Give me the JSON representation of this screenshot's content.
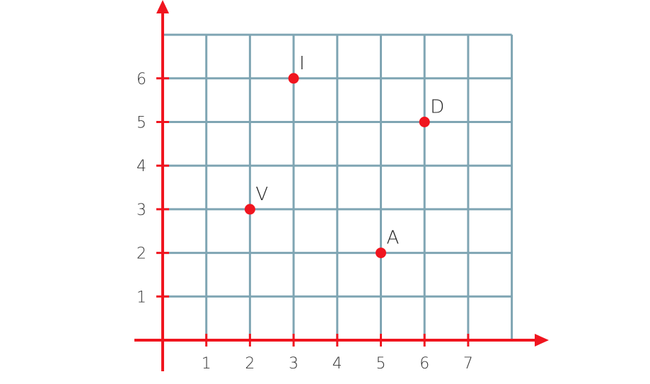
{
  "chart_data": {
    "type": "scatter",
    "xlim": [
      0,
      8
    ],
    "ylim": [
      0,
      7
    ],
    "x_ticks": [
      1,
      2,
      3,
      4,
      5,
      6,
      7
    ],
    "y_ticks": [
      1,
      2,
      3,
      4,
      5,
      6
    ],
    "grid": true,
    "points": [
      {
        "label": "I",
        "x": 3,
        "y": 6
      },
      {
        "label": "D",
        "x": 6,
        "y": 5
      },
      {
        "label": "V",
        "x": 2,
        "y": 3
      },
      {
        "label": "A",
        "x": 5,
        "y": 2
      }
    ],
    "colors": {
      "axis": "#f0151f",
      "grid": "#7fa5b3",
      "point": "#f0151f"
    }
  }
}
